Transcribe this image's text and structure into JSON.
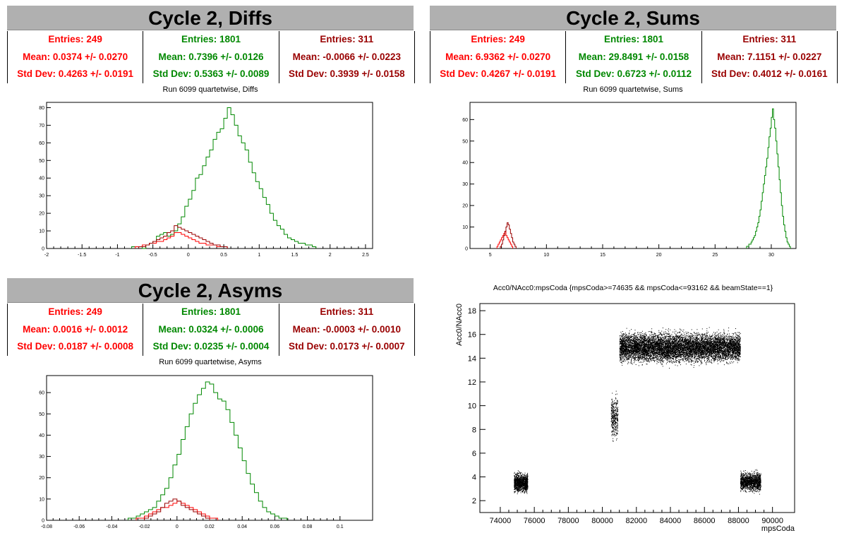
{
  "panels": {
    "diffs": {
      "title": "Cycle 2, Diffs",
      "subtitle": "Run 6099 quartetwise, Diffs",
      "stats": [
        {
          "entries": "Entries: 249",
          "mean": "Mean: 0.0374 +/- 0.0270",
          "std": "Std Dev: 0.4263 +/- 0.0191",
          "color": "#ff0000"
        },
        {
          "entries": "Entries: 1801",
          "mean": "Mean: 0.7396 +/- 0.0126",
          "std": "Std Dev: 0.5363 +/- 0.0089",
          "color": "#008800"
        },
        {
          "entries": "Entries: 311",
          "mean": "Mean: -0.0066 +/- 0.0223",
          "std": "Std Dev: 0.3939 +/- 0.0158",
          "color": "#990000"
        }
      ]
    },
    "sums": {
      "title": "Cycle 2, Sums",
      "subtitle": "Run 6099 quartetwise, Sums",
      "stats": [
        {
          "entries": "Entries: 249",
          "mean": "Mean: 6.9362 +/- 0.0270",
          "std": "Std Dev: 0.4267 +/- 0.0191",
          "color": "#ff0000"
        },
        {
          "entries": "Entries: 1801",
          "mean": "Mean: 29.8491 +/- 0.0158",
          "std": "Std Dev: 0.6723 +/- 0.0112",
          "color": "#008800"
        },
        {
          "entries": "Entries: 311",
          "mean": "Mean: 7.1151 +/- 0.0227",
          "std": "Std Dev: 0.4012 +/- 0.0161",
          "color": "#990000"
        }
      ]
    },
    "asyms": {
      "title": "Cycle 2, Asyms",
      "subtitle": "Run 6099 quartetwise, Asyms",
      "stats": [
        {
          "entries": "Entries: 249",
          "mean": "Mean: 0.0016 +/- 0.0012",
          "std": "Std Dev: 0.0187 +/- 0.0008",
          "color": "#ff0000"
        },
        {
          "entries": "Entries: 1801",
          "mean": "Mean: 0.0324 +/- 0.0006",
          "std": "Std Dev: 0.0235 +/- 0.0004",
          "color": "#008800"
        },
        {
          "entries": "Entries: 311",
          "mean": "Mean: -0.0003 +/- 0.0010",
          "std": "Std Dev: 0.0173 +/- 0.0007",
          "color": "#990000"
        }
      ]
    },
    "scatter": {
      "title": "Acc0/NAcc0:mpsCoda {mpsCoda>=74635 && mpsCoda<=93162 && beamState==1}"
    }
  },
  "chart_data": [
    {
      "type": "bar",
      "title": "Run 6099 quartetwise, Diffs",
      "xlim": [
        -2,
        2.6
      ],
      "ylim": [
        0,
        83
      ],
      "xticks": [
        -2,
        -1.5,
        -1,
        -0.5,
        0,
        0.5,
        1,
        1.5,
        2,
        2.5
      ],
      "yticks": [
        0,
        10,
        20,
        30,
        40,
        50,
        60,
        70,
        80
      ],
      "series": [
        {
          "color": "#008800",
          "bin_start": -0.8,
          "bin_width": 0.05,
          "values": [
            1,
            1,
            1,
            0,
            2,
            3,
            4,
            7,
            8,
            9,
            7,
            8,
            10,
            14,
            18,
            24,
            28,
            33,
            40,
            42,
            47,
            52,
            56,
            62,
            66,
            68,
            74,
            80,
            76,
            70,
            64,
            60,
            56,
            49,
            43,
            38,
            34,
            29,
            25,
            20,
            16,
            13,
            11,
            8,
            6,
            5,
            4,
            3,
            3,
            2,
            2,
            1
          ]
        },
        {
          "color": "#ff0000",
          "bin_start": -0.75,
          "bin_width": 0.05,
          "values": [
            1,
            1,
            2,
            2,
            3,
            3,
            4,
            4,
            5,
            6,
            7,
            9,
            9,
            8,
            7,
            6,
            5,
            4,
            3,
            3,
            2,
            2,
            2,
            1,
            1,
            1
          ]
        },
        {
          "color": "#990000",
          "bin_start": -0.7,
          "bin_width": 0.05,
          "values": [
            1,
            1,
            2,
            3,
            4,
            5,
            6,
            7,
            9,
            10,
            13,
            12,
            11,
            10,
            9,
            8,
            7,
            6,
            5,
            4,
            3,
            2,
            2,
            1,
            1
          ]
        }
      ]
    },
    {
      "type": "bar",
      "title": "Run 6099 quartetwise, Sums",
      "xlim": [
        3.2,
        32.2
      ],
      "ylim": [
        0,
        68
      ],
      "xticks": [
        5,
        10,
        15,
        20,
        25,
        30
      ],
      "yticks": [
        0,
        10,
        20,
        30,
        40,
        50,
        60
      ],
      "series": [
        {
          "color": "#008800",
          "bin_start": 27.8,
          "bin_width": 0.1,
          "values": [
            1,
            1,
            2,
            2,
            3,
            4,
            5,
            6,
            8,
            10,
            12,
            15,
            18,
            22,
            26,
            30,
            34,
            38,
            42,
            47,
            52,
            56,
            61,
            65,
            60,
            56,
            50,
            44,
            38,
            32,
            26,
            20,
            15,
            11,
            8,
            5,
            3,
            2,
            1
          ]
        },
        {
          "color": "#ff0000",
          "bin_start": 5.6,
          "bin_width": 0.1,
          "values": [
            1,
            2,
            3,
            4,
            5,
            6,
            7,
            8,
            6,
            5,
            4,
            3,
            2,
            1
          ]
        },
        {
          "color": "#990000",
          "bin_start": 5.9,
          "bin_width": 0.1,
          "values": [
            1,
            2,
            4,
            6,
            8,
            10,
            12,
            11,
            9,
            7,
            5,
            3,
            2,
            1
          ]
        }
      ]
    },
    {
      "type": "bar",
      "title": "Run 6099 quartetwise, Asyms",
      "xlim": [
        -0.08,
        0.12
      ],
      "ylim": [
        0,
        68
      ],
      "xticks": [
        -0.08,
        -0.06,
        -0.04,
        -0.02,
        0,
        0.02,
        0.04,
        0.06,
        0.08,
        0.1
      ],
      "yticks": [
        0,
        10,
        20,
        30,
        40,
        50,
        60
      ],
      "series": [
        {
          "color": "#008800",
          "bin_start": -0.03,
          "bin_width": 0.0025,
          "values": [
            1,
            1,
            2,
            3,
            4,
            5,
            6,
            9,
            12,
            15,
            20,
            26,
            31,
            38,
            44,
            50,
            55,
            59,
            62,
            65,
            64,
            60,
            57,
            56,
            52,
            46,
            40,
            34,
            28,
            22,
            17,
            13,
            9,
            6,
            4,
            3,
            2,
            1,
            1
          ]
        },
        {
          "color": "#ff0000",
          "bin_start": -0.025,
          "bin_width": 0.0025,
          "values": [
            1,
            1,
            2,
            3,
            4,
            5,
            6,
            6,
            7,
            8,
            9,
            8,
            7,
            6,
            5,
            4,
            3,
            2,
            1,
            1
          ]
        },
        {
          "color": "#990000",
          "bin_start": -0.02,
          "bin_width": 0.0025,
          "values": [
            1,
            2,
            3,
            4,
            6,
            8,
            9,
            10,
            9,
            7,
            6,
            5,
            4,
            3,
            2,
            1
          ]
        }
      ]
    },
    {
      "type": "scatter",
      "title": "Acc0/NAcc0:mpsCoda {mpsCoda>=74635 && mpsCoda<=93162 && beamState==1}",
      "xlabel": "mpsCoda",
      "ylabel": "Acc0/NAcc0",
      "xlim": [
        72800,
        91300
      ],
      "ylim": [
        1,
        18.6
      ],
      "xticks": [
        74000,
        76000,
        78000,
        80000,
        82000,
        84000,
        86000,
        88000,
        90000
      ],
      "yticks": [
        2,
        4,
        6,
        8,
        10,
        12,
        14,
        16,
        18
      ],
      "clusters": [
        {
          "x_range": [
            74800,
            75600
          ],
          "y_center": 3.5,
          "y_spread": 0.35,
          "count": 1200
        },
        {
          "x_range": [
            80500,
            80900
          ],
          "y_center": 9.0,
          "y_spread": 0.8,
          "count": 350
        },
        {
          "x_range": [
            81000,
            88100
          ],
          "y_center": 14.9,
          "y_spread": 0.55,
          "count": 9000
        },
        {
          "x_range": [
            88100,
            89300
          ],
          "y_center": 3.6,
          "y_spread": 0.35,
          "count": 1400
        }
      ]
    }
  ]
}
